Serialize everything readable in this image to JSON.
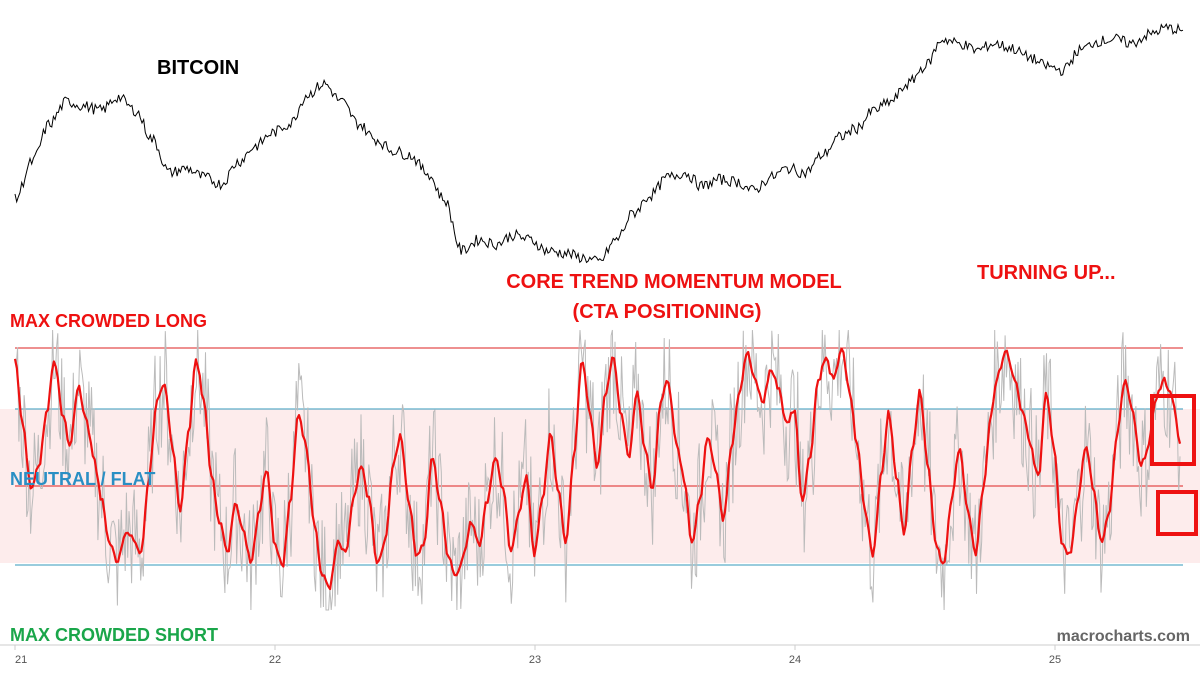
{
  "chart_data": [
    {
      "type": "line",
      "name": "BITCOIN",
      "title": "BITCOIN",
      "x_ticks": [
        "21",
        "22",
        "23",
        "24",
        "25"
      ],
      "trend_description_relative": [
        0.28,
        0.45,
        0.62,
        0.72,
        0.7,
        0.68,
        0.74,
        0.68,
        0.55,
        0.4,
        0.42,
        0.38,
        0.35,
        0.45,
        0.52,
        0.58,
        0.62,
        0.75,
        0.8,
        0.72,
        0.62,
        0.55,
        0.5,
        0.48,
        0.4,
        0.28,
        0.05,
        0.1,
        0.08,
        0.12,
        0.1,
        0.05,
        0.04,
        0.02,
        0.0,
        0.1,
        0.22,
        0.3,
        0.38,
        0.4,
        0.34,
        0.37,
        0.36,
        0.32,
        0.38,
        0.42,
        0.4,
        0.48,
        0.56,
        0.6,
        0.68,
        0.72,
        0.8,
        0.88,
        1.0,
        0.98,
        0.95,
        0.98,
        0.96,
        0.92,
        0.88,
        0.86,
        0.95,
        0.99,
        1.0,
        0.98,
        1.02,
        1.05,
        1.04
      ],
      "color": "#000000"
    },
    {
      "type": "line",
      "title_lines": [
        "CORE TREND MOMENTUM MODEL",
        "(CTA POSITIONING)"
      ],
      "annotation": "TURNING UP...",
      "levels": {
        "max_long_label": "MAX CROWDED LONG",
        "neutral_label": "NEUTRAL / FLAT",
        "max_short_label": "MAX CROWDED SHORT"
      },
      "x_ticks": [
        "21",
        "22",
        "23",
        "24",
        "25"
      ],
      "smoothed_series_color": "#ee1111",
      "raw_series_color": "#bbbbbb",
      "band_color": "#fdecec",
      "long_line_color": "#dd2222",
      "band_line_color": "#3399bb",
      "smoothed_values": [
        0.95,
        0.65,
        0.35,
        0.45,
        0.7,
        0.95,
        0.7,
        0.55,
        0.82,
        0.68,
        0.5,
        0.3,
        0.1,
        0.02,
        0.15,
        0.12,
        0.05,
        0.4,
        0.75,
        0.82,
        0.55,
        0.25,
        0.6,
        0.95,
        0.75,
        0.4,
        0.2,
        0.05,
        0.3,
        0.15,
        0.02,
        0.25,
        0.45,
        0.1,
        0.0,
        0.3,
        0.7,
        0.55,
        0.2,
        -0.05,
        -0.1,
        0.1,
        0.05,
        0.3,
        0.45,
        0.3,
        0.0,
        0.1,
        0.45,
        0.6,
        0.3,
        0.05,
        0.1,
        0.5,
        0.3,
        0.05,
        -0.05,
        0.05,
        0.2,
        0.1,
        0.3,
        0.5,
        0.35,
        0.05,
        0.25,
        0.4,
        0.05,
        0.3,
        0.6,
        0.35,
        0.1,
        0.5,
        0.95,
        0.7,
        0.45,
        0.8,
        0.95,
        0.7,
        0.5,
        0.8,
        0.55,
        0.35,
        0.75,
        0.85,
        0.55,
        0.4,
        0.1,
        0.3,
        0.6,
        0.45,
        0.2,
        0.55,
        0.8,
        0.98,
        0.85,
        0.75,
        0.9,
        0.82,
        0.65,
        0.72,
        0.3,
        0.5,
        0.85,
        0.95,
        0.85,
        1.0,
        0.8,
        0.55,
        0.25,
        0.05,
        0.4,
        0.7,
        0.4,
        0.15,
        0.55,
        0.8,
        0.45,
        0.1,
        0.0,
        0.3,
        0.55,
        0.25,
        0.05,
        0.35,
        0.7,
        0.9,
        0.98,
        0.85,
        0.7,
        0.55,
        0.4,
        0.8,
        0.55,
        0.1,
        0.05,
        0.3,
        0.55,
        0.35,
        0.1,
        0.25,
        0.6,
        0.85,
        0.7,
        0.45,
        0.55,
        0.78,
        0.85,
        0.78,
        0.55
      ]
    }
  ],
  "credit": "macrocharts.com"
}
